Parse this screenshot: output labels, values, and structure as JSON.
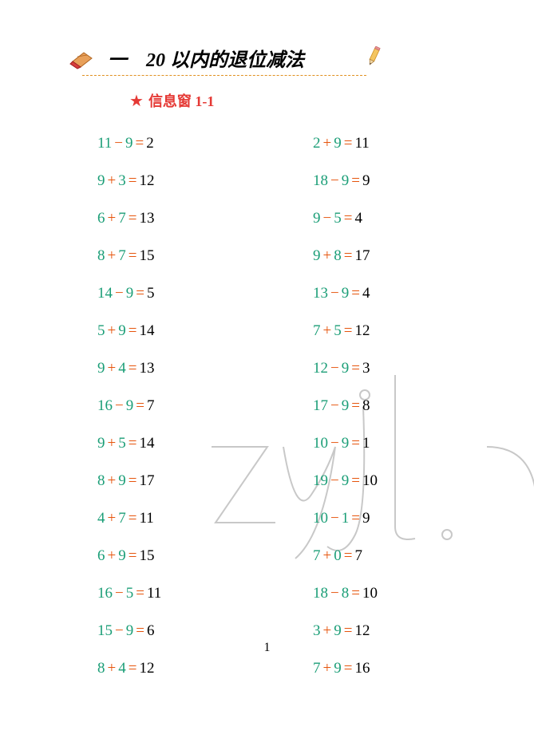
{
  "chapter": {
    "title": "一　20 以内的退位减法"
  },
  "subtitle": {
    "text": "信息窗 1-1"
  },
  "colors": {
    "operand": "#1b9e77",
    "operator": "#e6550d",
    "result": "#000000",
    "star": "#e53935",
    "dash": "#e09020"
  },
  "equations": {
    "left": [
      {
        "a": "11",
        "op": "−",
        "b": "9",
        "r": "2"
      },
      {
        "a": "9",
        "op": "+",
        "b": "3",
        "r": "12"
      },
      {
        "a": "6",
        "op": "+",
        "b": "7",
        "r": "13"
      },
      {
        "a": "8",
        "op": "+",
        "b": "7",
        "r": "15"
      },
      {
        "a": "14",
        "op": "−",
        "b": "9",
        "r": "5"
      },
      {
        "a": "5",
        "op": "+",
        "b": "9",
        "r": "14"
      },
      {
        "a": "9",
        "op": "+",
        "b": "4",
        "r": "13"
      },
      {
        "a": "16",
        "op": "−",
        "b": "9",
        "r": "7"
      },
      {
        "a": "9",
        "op": "+",
        "b": "5",
        "r": "14"
      },
      {
        "a": "8",
        "op": "+",
        "b": "9",
        "r": "17"
      },
      {
        "a": "4",
        "op": "+",
        "b": "7",
        "r": "11"
      },
      {
        "a": "6",
        "op": "+",
        "b": "9",
        "r": "15"
      },
      {
        "a": "16",
        "op": "−",
        "b": "5",
        "r": "11"
      },
      {
        "a": "15",
        "op": "−",
        "b": "9",
        "r": "6"
      },
      {
        "a": "8",
        "op": "+",
        "b": "4",
        "r": "12"
      }
    ],
    "right": [
      {
        "a": "2",
        "op": "+",
        "b": "9",
        "r": "11"
      },
      {
        "a": "18",
        "op": "−",
        "b": "9",
        "r": "9"
      },
      {
        "a": "9",
        "op": "−",
        "b": "5",
        "r": "4"
      },
      {
        "a": "9",
        "op": "+",
        "b": "8",
        "r": "17"
      },
      {
        "a": "13",
        "op": "−",
        "b": "9",
        "r": "4"
      },
      {
        "a": "7",
        "op": "+",
        "b": "5",
        "r": "12"
      },
      {
        "a": "12",
        "op": "−",
        "b": "9",
        "r": "3"
      },
      {
        "a": "17",
        "op": "−",
        "b": "9",
        "r": "8"
      },
      {
        "a": "10",
        "op": "−",
        "b": "9",
        "r": "1"
      },
      {
        "a": "19",
        "op": "−",
        "b": "9",
        "r": "10"
      },
      {
        "a": "10",
        "op": "−",
        "b": "1",
        "r": "9"
      },
      {
        "a": "7",
        "op": "+",
        "b": "0",
        "r": "7"
      },
      {
        "a": "18",
        "op": "−",
        "b": "8",
        "r": "10"
      },
      {
        "a": "3",
        "op": "+",
        "b": "9",
        "r": "12"
      },
      {
        "a": "7",
        "op": "+",
        "b": "9",
        "r": "16"
      }
    ]
  },
  "page_number": "1"
}
